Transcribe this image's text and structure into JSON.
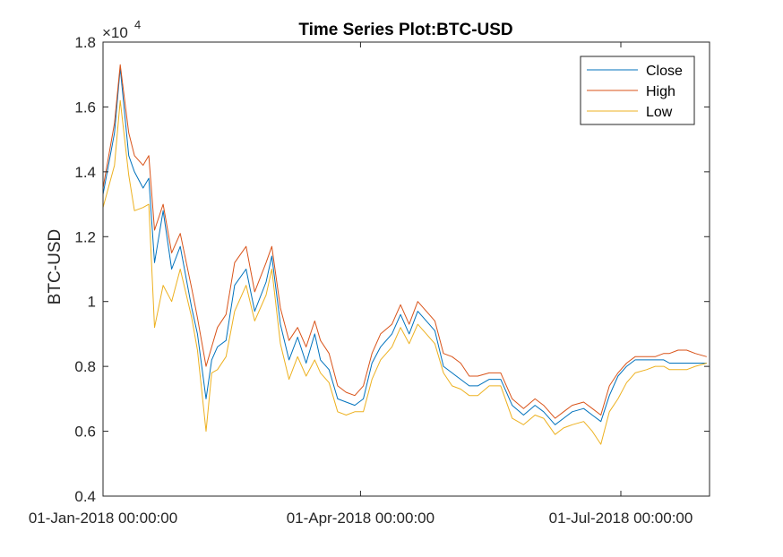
{
  "chart_data": {
    "type": "line",
    "title": "Time Series Plot:BTC-USD",
    "xlabel": "",
    "ylabel": "BTC-USD",
    "y_exponent_label": "×10",
    "y_exponent_power": "4",
    "ylim": [
      0.4,
      1.8
    ],
    "y_ticks": [
      0.4,
      0.6,
      0.8,
      1,
      1.2,
      1.4,
      1.6,
      1.8
    ],
    "y_tick_labels": [
      "0.4",
      "0.6",
      "0.8",
      "1",
      "1.2",
      "1.4",
      "1.6",
      "1.8"
    ],
    "x_start": "2018-01-01",
    "x_end": "2018-08-01",
    "x_ticks": [
      "2018-01-01",
      "2018-04-01",
      "2018-07-01"
    ],
    "x_tick_labels": [
      "01-Jan-2018 00:00:00",
      "01-Apr-2018 00:00:00",
      "01-Jul-2018 00:00:00"
    ],
    "legend_position": "top-right",
    "series_colors": {
      "Close": "#0072BD",
      "High": "#D95319",
      "Low": "#EDB120"
    },
    "x": [
      "2018-01-01",
      "2018-01-05",
      "2018-01-07",
      "2018-01-10",
      "2018-01-12",
      "2018-01-15",
      "2018-01-17",
      "2018-01-19",
      "2018-01-22",
      "2018-01-25",
      "2018-01-28",
      "2018-02-01",
      "2018-02-03",
      "2018-02-06",
      "2018-02-08",
      "2018-02-10",
      "2018-02-13",
      "2018-02-16",
      "2018-02-20",
      "2018-02-23",
      "2018-02-27",
      "2018-03-01",
      "2018-03-04",
      "2018-03-07",
      "2018-03-10",
      "2018-03-13",
      "2018-03-16",
      "2018-03-18",
      "2018-03-21",
      "2018-03-24",
      "2018-03-27",
      "2018-03-30",
      "2018-04-02",
      "2018-04-05",
      "2018-04-08",
      "2018-04-12",
      "2018-04-15",
      "2018-04-18",
      "2018-04-21",
      "2018-04-24",
      "2018-04-27",
      "2018-04-30",
      "2018-05-03",
      "2018-05-06",
      "2018-05-09",
      "2018-05-12",
      "2018-05-16",
      "2018-05-20",
      "2018-05-24",
      "2018-05-28",
      "2018-06-01",
      "2018-06-04",
      "2018-06-08",
      "2018-06-11",
      "2018-06-14",
      "2018-06-18",
      "2018-06-21",
      "2018-06-24",
      "2018-06-27",
      "2018-06-30",
      "2018-07-03",
      "2018-07-06",
      "2018-07-10",
      "2018-07-13",
      "2018-07-16",
      "2018-07-18",
      "2018-07-21",
      "2018-07-24",
      "2018-07-27",
      "2018-07-31"
    ],
    "series": [
      {
        "name": "Close",
        "values": [
          1.33,
          1.52,
          1.72,
          1.45,
          1.4,
          1.35,
          1.38,
          1.12,
          1.28,
          1.1,
          1.17,
          0.98,
          0.9,
          0.7,
          0.82,
          0.86,
          0.88,
          1.05,
          1.1,
          0.97,
          1.06,
          1.14,
          0.93,
          0.82,
          0.89,
          0.81,
          0.9,
          0.82,
          0.79,
          0.7,
          0.69,
          0.68,
          0.7,
          0.81,
          0.86,
          0.9,
          0.96,
          0.9,
          0.97,
          0.94,
          0.91,
          0.8,
          0.78,
          0.76,
          0.74,
          0.74,
          0.76,
          0.76,
          0.68,
          0.65,
          0.68,
          0.66,
          0.62,
          0.64,
          0.66,
          0.67,
          0.65,
          0.63,
          0.71,
          0.77,
          0.8,
          0.82,
          0.82,
          0.82,
          0.82,
          0.81,
          0.81,
          0.81,
          0.81,
          0.81
        ]
      },
      {
        "name": "High",
        "values": [
          1.35,
          1.55,
          1.73,
          1.52,
          1.45,
          1.42,
          1.45,
          1.22,
          1.3,
          1.15,
          1.21,
          1.04,
          0.95,
          0.8,
          0.86,
          0.92,
          0.96,
          1.12,
          1.17,
          1.03,
          1.12,
          1.17,
          0.98,
          0.88,
          0.92,
          0.86,
          0.94,
          0.88,
          0.84,
          0.74,
          0.72,
          0.71,
          0.74,
          0.84,
          0.9,
          0.93,
          0.99,
          0.93,
          1.0,
          0.97,
          0.94,
          0.84,
          0.83,
          0.81,
          0.77,
          0.77,
          0.78,
          0.78,
          0.7,
          0.67,
          0.7,
          0.68,
          0.64,
          0.66,
          0.68,
          0.69,
          0.67,
          0.65,
          0.74,
          0.78,
          0.81,
          0.83,
          0.83,
          0.83,
          0.84,
          0.84,
          0.85,
          0.85,
          0.84,
          0.83
        ]
      },
      {
        "name": "Low",
        "values": [
          1.29,
          1.42,
          1.62,
          1.39,
          1.28,
          1.29,
          1.3,
          0.92,
          1.05,
          1.0,
          1.1,
          0.95,
          0.85,
          0.6,
          0.78,
          0.79,
          0.83,
          0.97,
          1.05,
          0.94,
          1.02,
          1.1,
          0.87,
          0.76,
          0.83,
          0.77,
          0.82,
          0.78,
          0.75,
          0.66,
          0.65,
          0.66,
          0.66,
          0.76,
          0.82,
          0.86,
          0.92,
          0.87,
          0.93,
          0.9,
          0.87,
          0.78,
          0.74,
          0.73,
          0.71,
          0.71,
          0.74,
          0.74,
          0.64,
          0.62,
          0.65,
          0.64,
          0.59,
          0.61,
          0.62,
          0.63,
          0.6,
          0.56,
          0.66,
          0.7,
          0.75,
          0.78,
          0.79,
          0.8,
          0.8,
          0.79,
          0.79,
          0.79,
          0.8,
          0.81
        ]
      }
    ]
  }
}
